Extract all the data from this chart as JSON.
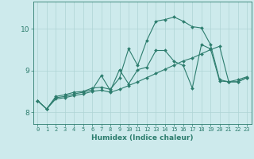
{
  "xlabel": "Humidex (Indice chaleur)",
  "background_color": "#cdeaec",
  "line_color": "#2d7d6e",
  "grid_color": "#aed4d4",
  "xlim": [
    -0.5,
    23.5
  ],
  "ylim": [
    7.72,
    10.65
  ],
  "yticks": [
    8,
    9,
    10
  ],
  "xticks": [
    0,
    1,
    2,
    3,
    4,
    5,
    6,
    7,
    8,
    9,
    10,
    11,
    12,
    13,
    14,
    15,
    16,
    17,
    18,
    19,
    20,
    21,
    22,
    23
  ],
  "line1_x": [
    0,
    1,
    2,
    3,
    4,
    5,
    6,
    7,
    8,
    9,
    10,
    11,
    12,
    13,
    14,
    15,
    16,
    17,
    18,
    19,
    20,
    21,
    22,
    23
  ],
  "line1_y": [
    8.28,
    8.08,
    8.38,
    8.42,
    8.48,
    8.5,
    8.58,
    8.6,
    8.55,
    8.82,
    9.52,
    9.12,
    9.72,
    10.18,
    10.22,
    10.28,
    10.18,
    10.05,
    10.02,
    9.62,
    8.78,
    8.73,
    8.73,
    8.83
  ],
  "line2_x": [
    0,
    1,
    2,
    3,
    4,
    5,
    6,
    7,
    8,
    9,
    10,
    11,
    12,
    13,
    14,
    15,
    16,
    17,
    18,
    19,
    20,
    21,
    22,
    23
  ],
  "line2_y": [
    8.28,
    8.08,
    8.35,
    8.38,
    8.44,
    8.48,
    8.54,
    8.88,
    8.52,
    9.02,
    8.68,
    9.02,
    9.08,
    9.48,
    9.48,
    9.22,
    9.12,
    8.58,
    9.62,
    9.52,
    8.75,
    8.73,
    8.73,
    8.83
  ],
  "line3_x": [
    0,
    1,
    2,
    3,
    4,
    5,
    6,
    7,
    8,
    9,
    10,
    11,
    12,
    13,
    14,
    15,
    16,
    17,
    18,
    19,
    20,
    21,
    22,
    23
  ],
  "line3_y": [
    8.28,
    8.08,
    8.32,
    8.35,
    8.4,
    8.44,
    8.5,
    8.53,
    8.48,
    8.55,
    8.64,
    8.73,
    8.83,
    8.93,
    9.03,
    9.13,
    9.23,
    9.3,
    9.4,
    9.5,
    9.58,
    8.73,
    8.78,
    8.85
  ]
}
